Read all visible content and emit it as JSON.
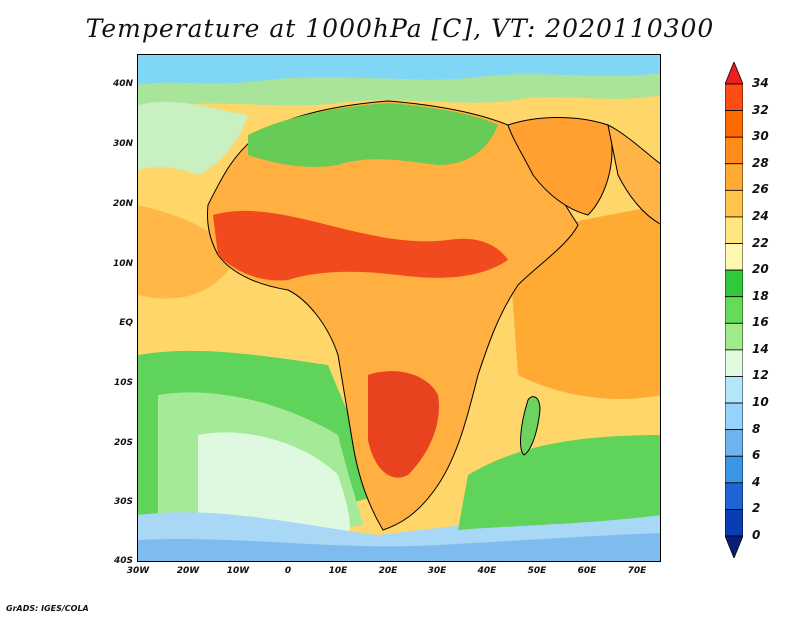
{
  "title": "Temperature at 1000hPa [C], VT: 2020110300",
  "footer": "GrADS: IGES/COLA",
  "map": {
    "lon_range": [
      -30,
      75
    ],
    "lat_range": [
      -40,
      45
    ],
    "lat_labels": [
      "40N",
      "30N",
      "20N",
      "10N",
      "EQ",
      "10S",
      "20S",
      "30S",
      "40S"
    ],
    "lon_labels": [
      "30W",
      "20W",
      "10W",
      "0",
      "10E",
      "20E",
      "30E",
      "40E",
      "50E",
      "60E",
      "70E"
    ]
  },
  "colorbar": {
    "levels": [
      "34",
      "32",
      "30",
      "28",
      "26",
      "24",
      "22",
      "20",
      "18",
      "16",
      "14",
      "12",
      "10",
      "8",
      "6",
      "4",
      "2",
      "0"
    ],
    "colors": [
      "#f01e1e",
      "#ff4c14",
      "#ff6a00",
      "#ff8c1a",
      "#ffaa33",
      "#ffc44d",
      "#ffe680",
      "#fff6b0",
      "#32c83c",
      "#64dc5a",
      "#a0ea8c",
      "#e0fae0",
      "#b4e6fa",
      "#96d2fa",
      "#6eb4f0",
      "#3c96e6",
      "#1e64d2",
      "#0a3cb4",
      "#0a1e78"
    ]
  }
}
